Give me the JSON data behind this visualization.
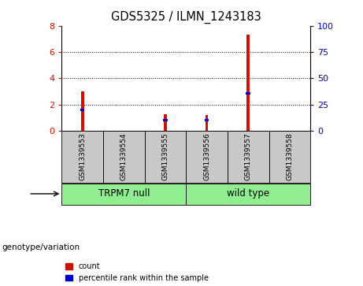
{
  "title": "GDS5325 / ILMN_1243183",
  "samples": [
    "GSM1339553",
    "GSM1339554",
    "GSM1339555",
    "GSM1339556",
    "GSM1339557",
    "GSM1339558"
  ],
  "count_values": [
    3.0,
    0.0,
    1.3,
    1.2,
    7.3,
    0.0
  ],
  "percentile_values": [
    20.0,
    0.0,
    10.5,
    10.5,
    36.0,
    0.0
  ],
  "groups": [
    {
      "label": "TRPM7 null",
      "samples_range": [
        0,
        2
      ]
    },
    {
      "label": "wild type",
      "samples_range": [
        3,
        5
      ]
    }
  ],
  "group_label": "genotype/variation",
  "ylim_left": [
    0,
    8
  ],
  "ylim_right": [
    0,
    100
  ],
  "yticks_left": [
    0,
    2,
    4,
    6,
    8
  ],
  "yticks_right": [
    0,
    25,
    50,
    75,
    100
  ],
  "bar_color_red": "#CC1100",
  "bar_color_blue": "#0000CC",
  "tick_label_color_left": "#CC1100",
  "tick_label_color_right": "#0000CC",
  "bar_width": 0.07,
  "sample_bg_color": "#C8C8C8",
  "group_bg_color": "#90EE90",
  "grid_dotted_color": "#333333",
  "plot_bg": "#FFFFFF"
}
